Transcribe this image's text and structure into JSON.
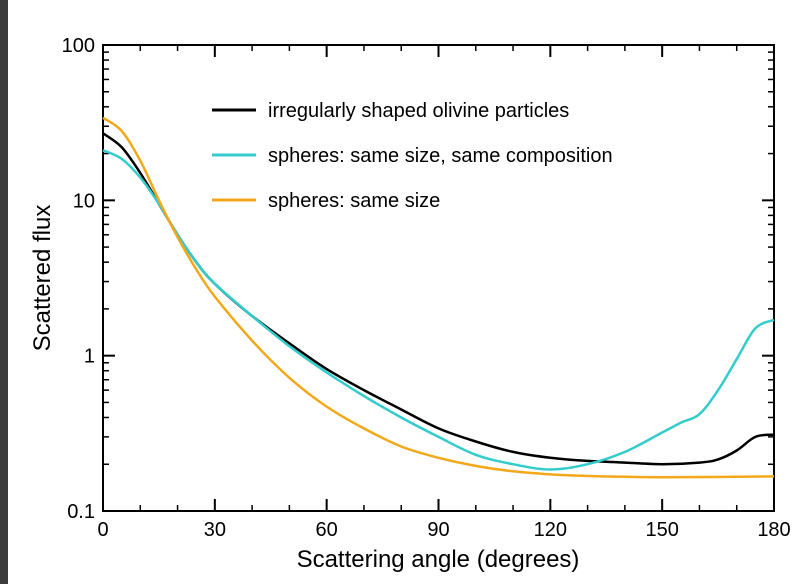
{
  "chart_data": {
    "type": "line",
    "title": "",
    "xlabel": "Scattering angle (degrees)",
    "ylabel": "Scattered flux",
    "xlim": [
      0,
      180
    ],
    "ylim": [
      0.1,
      100
    ],
    "yscale": "log",
    "grid": false,
    "legend_position": "top-center",
    "x_ticks": [
      0,
      30,
      60,
      90,
      120,
      150,
      180
    ],
    "x_tick_labels": [
      "0",
      "30",
      "60",
      "90",
      "120",
      "150",
      "180"
    ],
    "y_ticks": [
      0.1,
      1,
      10,
      100
    ],
    "y_tick_labels": [
      "0.1",
      "1",
      "10",
      "100"
    ],
    "series": [
      {
        "name": "irregularly shaped olivine particles",
        "color": "#000000",
        "points": [
          [
            0,
            27
          ],
          [
            5,
            22
          ],
          [
            10,
            15
          ],
          [
            15,
            9.5
          ],
          [
            20,
            6
          ],
          [
            25,
            4.0
          ],
          [
            30,
            2.9
          ],
          [
            40,
            1.8
          ],
          [
            50,
            1.2
          ],
          [
            60,
            0.82
          ],
          [
            70,
            0.6
          ],
          [
            80,
            0.45
          ],
          [
            90,
            0.34
          ],
          [
            100,
            0.28
          ],
          [
            110,
            0.24
          ],
          [
            120,
            0.22
          ],
          [
            130,
            0.21
          ],
          [
            140,
            0.205
          ],
          [
            150,
            0.2
          ],
          [
            160,
            0.205
          ],
          [
            165,
            0.215
          ],
          [
            170,
            0.245
          ],
          [
            175,
            0.3
          ],
          [
            180,
            0.31
          ]
        ]
      },
      {
        "name": "spheres: same size, same composition",
        "color": "#33cccc",
        "points": [
          [
            0,
            21
          ],
          [
            5,
            18.5
          ],
          [
            10,
            14
          ],
          [
            15,
            9.5
          ],
          [
            20,
            6
          ],
          [
            25,
            4.0
          ],
          [
            30,
            2.9
          ],
          [
            40,
            1.8
          ],
          [
            50,
            1.15
          ],
          [
            60,
            0.78
          ],
          [
            70,
            0.55
          ],
          [
            80,
            0.4
          ],
          [
            90,
            0.3
          ],
          [
            100,
            0.23
          ],
          [
            110,
            0.2
          ],
          [
            120,
            0.185
          ],
          [
            130,
            0.2
          ],
          [
            140,
            0.24
          ],
          [
            150,
            0.32
          ],
          [
            155,
            0.37
          ],
          [
            160,
            0.42
          ],
          [
            165,
            0.6
          ],
          [
            170,
            0.95
          ],
          [
            175,
            1.5
          ],
          [
            180,
            1.7
          ]
        ]
      },
      {
        "name": "spheres: same size",
        "color": "#f2a818",
        "points": [
          [
            0,
            34
          ],
          [
            5,
            28
          ],
          [
            10,
            18
          ],
          [
            15,
            10
          ],
          [
            20,
            5.8
          ],
          [
            25,
            3.6
          ],
          [
            30,
            2.4
          ],
          [
            40,
            1.25
          ],
          [
            50,
            0.72
          ],
          [
            60,
            0.47
          ],
          [
            70,
            0.34
          ],
          [
            80,
            0.26
          ],
          [
            90,
            0.22
          ],
          [
            100,
            0.195
          ],
          [
            110,
            0.18
          ],
          [
            120,
            0.172
          ],
          [
            130,
            0.168
          ],
          [
            150,
            0.165
          ],
          [
            180,
            0.167
          ]
        ]
      }
    ]
  }
}
